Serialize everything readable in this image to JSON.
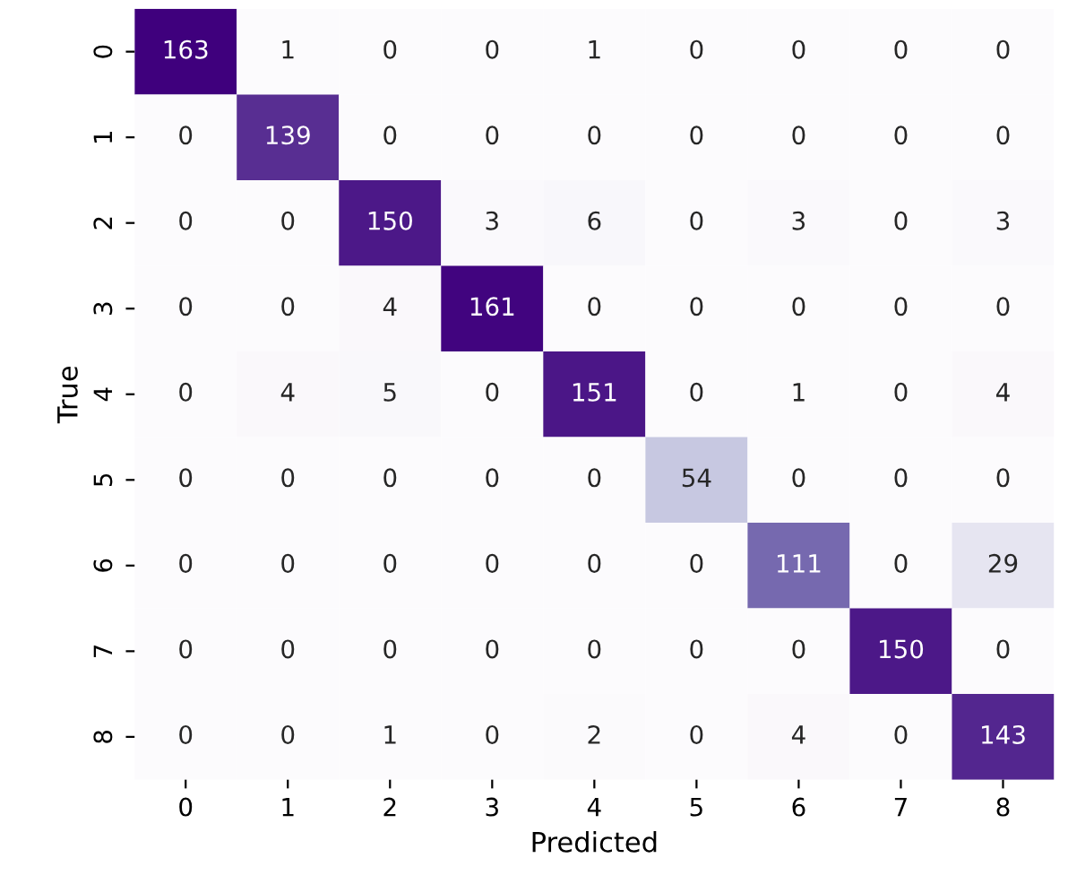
{
  "chart_data": {
    "type": "heatmap",
    "xlabel": "Predicted",
    "ylabel": "True",
    "data_labels": true,
    "categories": [
      "0",
      "1",
      "2",
      "3",
      "4",
      "5",
      "6",
      "7",
      "8"
    ],
    "y_categories": [
      "0",
      "1",
      "2",
      "3",
      "4",
      "5",
      "6",
      "7",
      "8"
    ],
    "cells": [
      [
        163,
        1,
        0,
        0,
        1,
        0,
        0,
        0,
        0
      ],
      [
        0,
        139,
        0,
        0,
        0,
        0,
        0,
        0,
        0
      ],
      [
        0,
        0,
        150,
        3,
        6,
        0,
        3,
        0,
        3
      ],
      [
        0,
        0,
        4,
        161,
        0,
        0,
        0,
        0,
        0
      ],
      [
        0,
        4,
        5,
        0,
        151,
        0,
        1,
        0,
        4
      ],
      [
        0,
        0,
        0,
        0,
        0,
        54,
        0,
        0,
        0
      ],
      [
        0,
        0,
        0,
        0,
        0,
        0,
        111,
        0,
        29
      ],
      [
        0,
        0,
        0,
        0,
        0,
        0,
        0,
        150,
        0
      ],
      [
        0,
        0,
        1,
        0,
        2,
        0,
        4,
        0,
        143
      ]
    ]
  }
}
